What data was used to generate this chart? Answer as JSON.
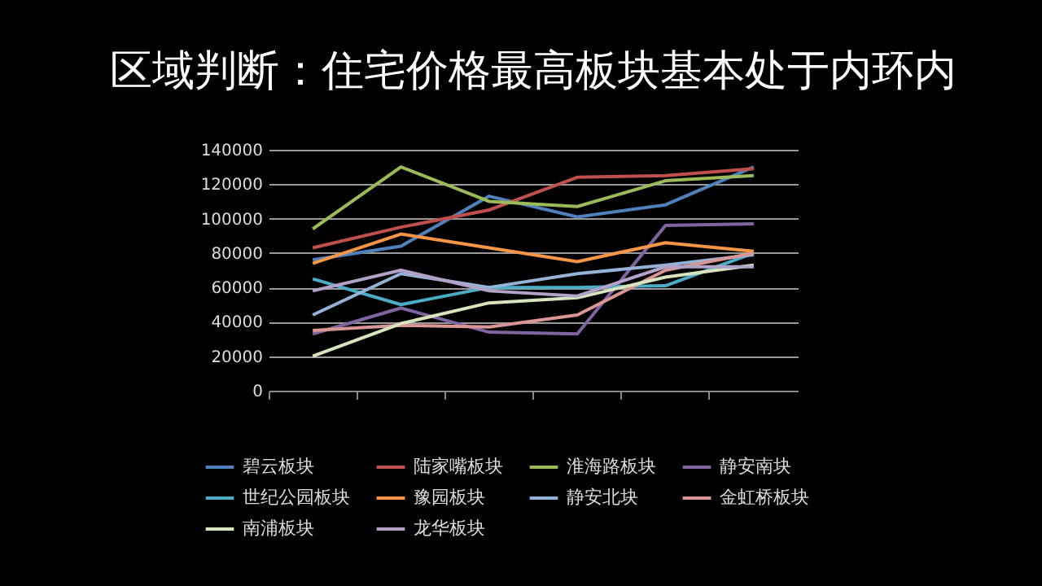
{
  "chart_data": {
    "type": "line",
    "title": "区域判断：住宅价格最高板块基本处于内环内",
    "categories": [
      null,
      null,
      null,
      null,
      null,
      null
    ],
    "ylim": [
      0,
      140000
    ],
    "yticks": [
      0,
      20000,
      40000,
      60000,
      80000,
      100000,
      120000,
      140000
    ],
    "grid": "y",
    "legend": "bottom",
    "tick_labels": "y",
    "series": [
      {
        "name": "碧云板块",
        "color": "#4f81bd",
        "values": [
          76000,
          84000,
          113000,
          101000,
          108000,
          130000
        ]
      },
      {
        "name": "陆家嘴板块",
        "color": "#c0504d",
        "values": [
          83000,
          95000,
          105000,
          124000,
          125000,
          129000
        ]
      },
      {
        "name": "淮海路板块",
        "color": "#9bbb59",
        "values": [
          94000,
          130000,
          110000,
          107000,
          122000,
          125000
        ]
      },
      {
        "name": "静安南块",
        "color": "#8064a2",
        "values": [
          33000,
          48000,
          34000,
          33000,
          96000,
          97000
        ]
      },
      {
        "name": "世纪公园板块",
        "color": "#4bacc6",
        "values": [
          65000,
          50000,
          60000,
          60000,
          61000,
          80000
        ]
      },
      {
        "name": "豫园板块",
        "color": "#f79646",
        "values": [
          74000,
          91000,
          83000,
          75000,
          86000,
          81000
        ]
      },
      {
        "name": "静安北块",
        "color": "#95b3d7",
        "values": [
          44000,
          68000,
          60000,
          68000,
          73000,
          79000
        ]
      },
      {
        "name": "金虹桥板块",
        "color": "#d99694",
        "values": [
          35000,
          38000,
          37000,
          44000,
          70000,
          80000
        ]
      },
      {
        "name": "南浦板块",
        "color": "#d7e4bd",
        "values": [
          20000,
          39000,
          51000,
          54000,
          66000,
          73000
        ]
      },
      {
        "name": "龙华板块",
        "color": "#b3a2c7",
        "values": [
          58000,
          70000,
          58000,
          55000,
          72000,
          72000
        ]
      }
    ]
  }
}
